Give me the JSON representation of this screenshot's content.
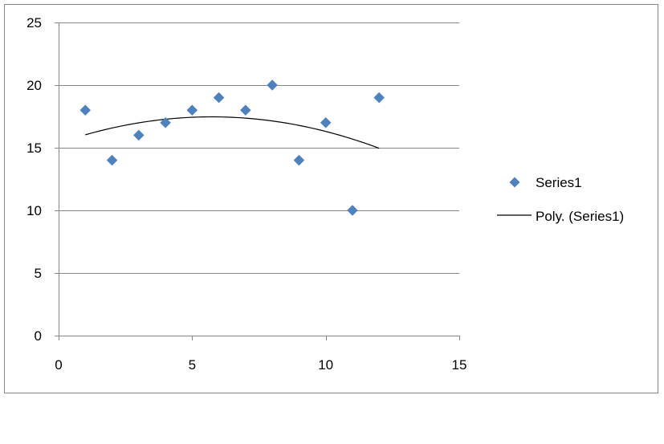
{
  "chart_data": {
    "type": "scatter",
    "title": "",
    "xlabel": "",
    "ylabel": "",
    "xlim": [
      0,
      15
    ],
    "ylim": [
      0,
      25
    ],
    "x_ticks": [
      "0",
      "5",
      "10",
      "15"
    ],
    "y_ticks": [
      "0",
      "5",
      "10",
      "15",
      "20",
      "25"
    ],
    "grid": {
      "horizontal": true,
      "vertical": false
    },
    "legend_position": "right",
    "series": [
      {
        "name": "Series1",
        "marker": "diamond",
        "color": "#4F81BD",
        "x": [
          1,
          2,
          3,
          4,
          5,
          6,
          7,
          8,
          9,
          10,
          11,
          12
        ],
        "y": [
          18,
          14,
          16,
          17,
          18,
          19,
          18,
          20,
          14,
          17,
          10,
          19
        ]
      }
    ],
    "trendline": {
      "name": "Poly. (Series1)",
      "type": "polynomial",
      "order": 2,
      "color": "#000000",
      "x_range": [
        1,
        12
      ]
    }
  }
}
